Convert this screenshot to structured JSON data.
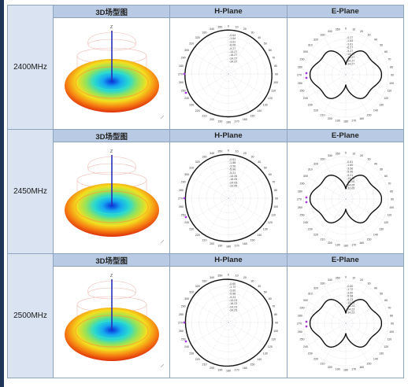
{
  "columns": [
    "3D场型图",
    "H-Plane",
    "E-Plane"
  ],
  "rows": [
    {
      "frequency": "2400MHz",
      "h_values": [
        "-0.64",
        "-1.64",
        "-3.61",
        "-6.05",
        "-9.27",
        "-13.27",
        "-18.27",
        "-24.27",
        "-34.27"
      ],
      "e_values": [
        "-0.27",
        "-1.64",
        "-3.61",
        "-6.27",
        "-9.27",
        "-13.27",
        "-18.27",
        "-24.27",
        "-34.27"
      ]
    },
    {
      "frequency": "2450MHz",
      "h_values": [
        "-0.61",
        "-1.88",
        "-3.56",
        "-5.96",
        "-9.21",
        "-13.26",
        "-18.05",
        "-24.05",
        "-33.05"
      ],
      "e_values": [
        "-0.61",
        "-1.60",
        "-3.56",
        "-5.96",
        "-9.21",
        "-13.26",
        "-18.05",
        "-24.05",
        "-33.05"
      ]
    },
    {
      "frequency": "2500MHz",
      "h_values": [
        "-0.60",
        "-1.72",
        "-3.60",
        "-5.98",
        "-9.23",
        "-13.23",
        "-18.23",
        "-24.23",
        "-34.23"
      ],
      "e_values": [
        "-0.60",
        "-1.72",
        "-3.60",
        "-5.98",
        "-9.23",
        "-13.23",
        "-18.23",
        "-24.23",
        "-34.23"
      ]
    }
  ],
  "angle_labels": [
    "0",
    "10",
    "20",
    "30",
    "40",
    "50",
    "60",
    "70",
    "80",
    "90",
    "100",
    "110",
    "120",
    "130",
    "140",
    "150",
    "160",
    "170",
    "180",
    "190",
    "200",
    "210",
    "220",
    "230",
    "240",
    "250",
    "260",
    "270",
    "280",
    "290",
    "300",
    "310",
    "320",
    "330",
    "340",
    "350"
  ],
  "axis_top_label": "Z"
}
